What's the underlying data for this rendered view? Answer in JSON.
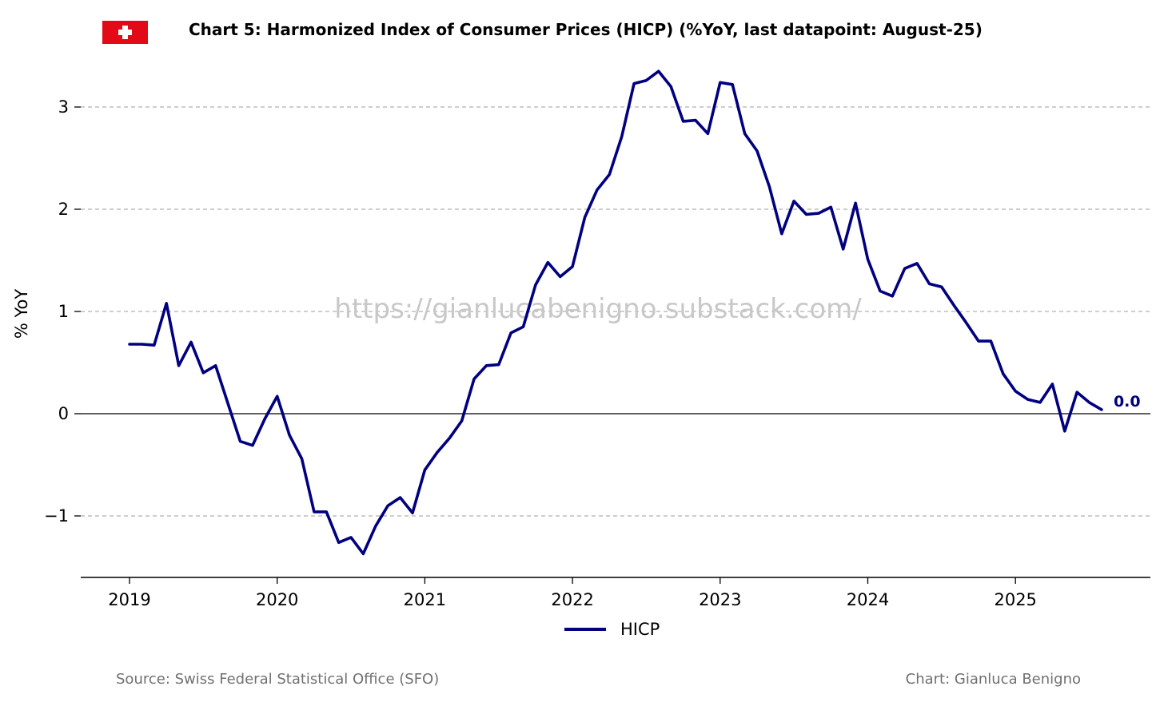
{
  "title": "Chart 5: Harmonized Index of Consumer Prices (HICP) (%YoY, last datapoint: August-25)",
  "source": "Source: Swiss Federal Statistical Office (SFO)",
  "credit": "Chart: Gianluca Benigno",
  "watermark": "https://gianlucabenigno.substack.com/",
  "colors": {
    "series": "#000080",
    "grid": "#b0b0b0",
    "flag": "#e30a17",
    "watermark": "#c8c8c8"
  },
  "chart_data": {
    "type": "line",
    "title": "Chart 5: Harmonized Index of Consumer Prices (HICP) (%YoY, last datapoint: August-25)",
    "xlabel": "",
    "ylabel": "% YoY",
    "x_ticks": [
      "2019",
      "2020",
      "2021",
      "2022",
      "2023",
      "2024",
      "2025"
    ],
    "y_ticks": [
      -1,
      0,
      1,
      2,
      3
    ],
    "ylim": [
      -1.6,
      3.5
    ],
    "xlim": [
      "2018-09",
      "2025-12"
    ],
    "grid": "horizontal dashed",
    "legend_position": "bottom-center",
    "last_value_label": "0.0",
    "series": [
      {
        "name": "HICP",
        "x": [
          "2019-01",
          "2019-02",
          "2019-03",
          "2019-04",
          "2019-05",
          "2019-06",
          "2019-07",
          "2019-08",
          "2019-09",
          "2019-10",
          "2019-11",
          "2019-12",
          "2020-01",
          "2020-02",
          "2020-03",
          "2020-04",
          "2020-05",
          "2020-06",
          "2020-07",
          "2020-08",
          "2020-09",
          "2020-10",
          "2020-11",
          "2020-12",
          "2021-01",
          "2021-02",
          "2021-03",
          "2021-04",
          "2021-05",
          "2021-06",
          "2021-07",
          "2021-08",
          "2021-09",
          "2021-10",
          "2021-11",
          "2021-12",
          "2022-01",
          "2022-02",
          "2022-03",
          "2022-04",
          "2022-05",
          "2022-06",
          "2022-07",
          "2022-08",
          "2022-09",
          "2022-10",
          "2022-11",
          "2022-12",
          "2023-01",
          "2023-02",
          "2023-03",
          "2023-04",
          "2023-05",
          "2023-06",
          "2023-07",
          "2023-08",
          "2023-09",
          "2023-10",
          "2023-11",
          "2023-12",
          "2024-01",
          "2024-02",
          "2024-03",
          "2024-04",
          "2024-05",
          "2024-06",
          "2024-07",
          "2024-08",
          "2024-09",
          "2024-10",
          "2024-11",
          "2024-12",
          "2025-01",
          "2025-02",
          "2025-03",
          "2025-04",
          "2025-05",
          "2025-06",
          "2025-07",
          "2025-08"
        ],
        "values": [
          0.68,
          0.68,
          0.67,
          1.08,
          0.47,
          0.7,
          0.4,
          0.47,
          0.1,
          -0.27,
          -0.31,
          -0.05,
          0.17,
          -0.21,
          -0.44,
          -0.96,
          -0.96,
          -1.26,
          -1.21,
          -1.37,
          -1.1,
          -0.9,
          -0.82,
          -0.97,
          -0.55,
          -0.38,
          -0.24,
          -0.07,
          0.34,
          0.47,
          0.48,
          0.79,
          0.85,
          1.26,
          1.48,
          1.34,
          1.44,
          1.92,
          2.19,
          2.34,
          2.71,
          3.23,
          3.26,
          3.35,
          3.2,
          2.86,
          2.87,
          2.74,
          3.24,
          3.22,
          2.74,
          2.57,
          2.22,
          1.76,
          2.08,
          1.95,
          1.96,
          2.02,
          1.61,
          2.06,
          1.51,
          1.2,
          1.15,
          1.42,
          1.47,
          1.27,
          1.24,
          1.06,
          0.89,
          0.71,
          0.71,
          0.39,
          0.22,
          0.14,
          0.11,
          0.29,
          -0.17,
          0.21,
          0.11,
          0.04
        ]
      }
    ]
  }
}
